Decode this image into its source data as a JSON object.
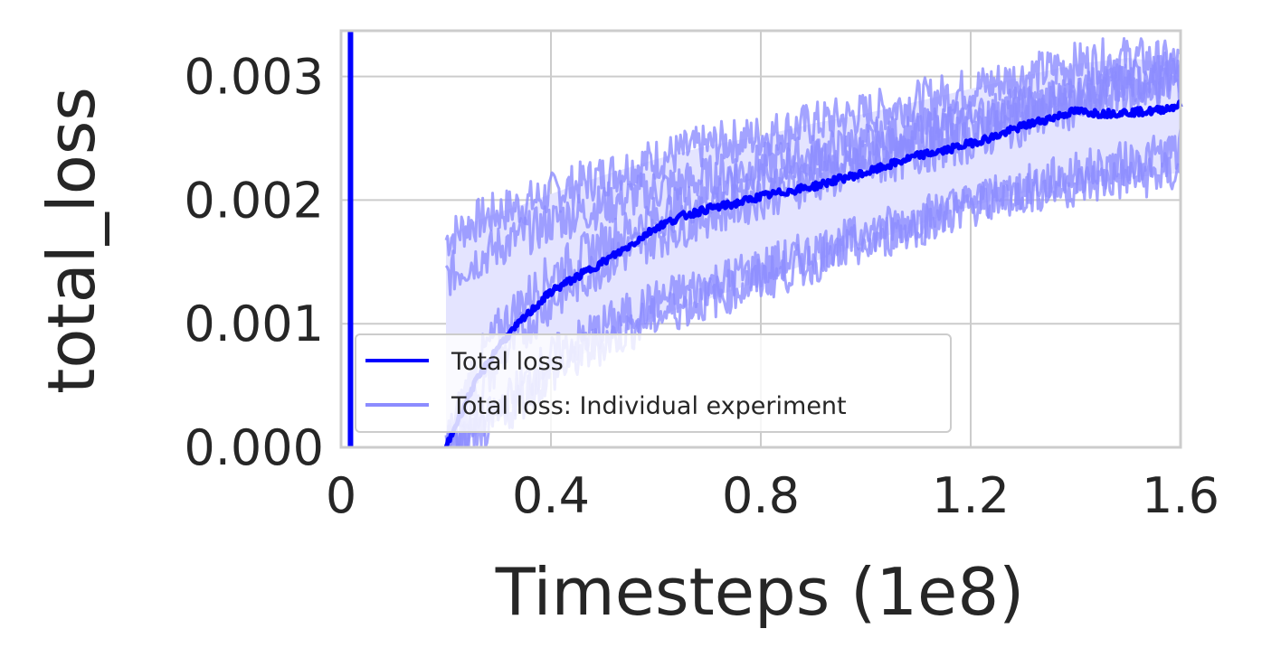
{
  "chart_data": {
    "type": "line",
    "xlabel": "Timesteps (1e8)",
    "ylabel": "total_loss",
    "xlim": [
      0,
      1.6
    ],
    "ylim": [
      0,
      0.00337
    ],
    "xticks": [
      0,
      0.4,
      0.8,
      1.2,
      1.6
    ],
    "xtick_labels": [
      "0",
      "0.4",
      "0.8",
      "1.2",
      "1.6"
    ],
    "yticks": [
      0,
      0.001,
      0.002,
      0.003
    ],
    "ytick_labels": [
      "0.000",
      "0.001",
      "0.002",
      "0.003"
    ],
    "grid": true,
    "legend_position": "lower-left",
    "legend": [
      "Total loss",
      "Total loss: Individual experiment"
    ],
    "colors": {
      "mean": "#0000ff",
      "individual": "#8c8cff",
      "band": "#e4e4ff",
      "grid": "#cccccc",
      "text": "#262626"
    },
    "vertical_line": {
      "x": 0.018,
      "color": "#0000ff"
    },
    "series": [
      {
        "name": "Total loss",
        "x": [
          0.2,
          0.25,
          0.3,
          0.35,
          0.4,
          0.45,
          0.5,
          0.55,
          0.6,
          0.65,
          0.7,
          0.75,
          0.8,
          0.85,
          0.9,
          0.95,
          1.0,
          1.05,
          1.1,
          1.15,
          1.2,
          1.25,
          1.3,
          1.35,
          1.4,
          1.45,
          1.5,
          1.55,
          1.6
        ],
        "values": [
          0.0,
          0.00048,
          0.00082,
          0.00105,
          0.00126,
          0.00138,
          0.0015,
          0.00163,
          0.00178,
          0.00187,
          0.00193,
          0.00197,
          0.00203,
          0.00207,
          0.00211,
          0.00217,
          0.00222,
          0.00229,
          0.00236,
          0.0024,
          0.00246,
          0.00252,
          0.0026,
          0.00266,
          0.00272,
          0.0027,
          0.00271,
          0.00272,
          0.00277
        ]
      },
      {
        "name": "Total loss: Individual experiment",
        "x": [
          0.2,
          0.25,
          0.3,
          0.35,
          0.4,
          0.5,
          0.6,
          0.7,
          0.8,
          0.9,
          1.0,
          1.1,
          1.2,
          1.3,
          1.4,
          1.5,
          1.6
        ],
        "values": [
          0.00168,
          0.00182,
          0.0019,
          0.00197,
          0.00205,
          0.0022,
          0.00233,
          0.00244,
          0.00252,
          0.00262,
          0.0027,
          0.0028,
          0.0029,
          0.003,
          0.0031,
          0.00315,
          0.0031
        ]
      },
      {
        "name": "Total loss: Individual experiment",
        "x": [
          0.2,
          0.25,
          0.3,
          0.35,
          0.4,
          0.5,
          0.6,
          0.7,
          0.8,
          0.9,
          1.0,
          1.1,
          1.2,
          1.3,
          1.4,
          1.5,
          1.6
        ],
        "values": [
          0.00138,
          0.0015,
          0.00162,
          0.00172,
          0.00182,
          0.00196,
          0.00208,
          0.00218,
          0.00228,
          0.00236,
          0.00245,
          0.00255,
          0.00265,
          0.00275,
          0.00285,
          0.00292,
          0.00298
        ]
      },
      {
        "name": "Total loss: Individual experiment",
        "x": [
          0.2,
          0.25,
          0.3,
          0.35,
          0.4,
          0.5,
          0.6,
          0.7,
          0.8,
          0.9,
          1.0,
          1.1,
          1.2,
          1.3,
          1.4,
          1.5,
          1.6
        ],
        "values": [
          0.0,
          0.0006,
          0.00095,
          0.0012,
          0.0014,
          0.00165,
          0.00186,
          0.00203,
          0.00218,
          0.0023,
          0.0024,
          0.00252,
          0.00262,
          0.00274,
          0.00285,
          0.00296,
          0.00304
        ]
      },
      {
        "name": "Total loss: Individual experiment",
        "x": [
          0.2,
          0.25,
          0.3,
          0.35,
          0.4,
          0.5,
          0.6,
          0.7,
          0.8,
          0.9,
          1.0,
          1.1,
          1.2,
          1.3,
          1.4,
          1.5,
          1.6
        ],
        "values": [
          0.0,
          0.00035,
          0.0007,
          0.00096,
          0.00118,
          0.00148,
          0.0017,
          0.00188,
          0.00202,
          0.00215,
          0.00226,
          0.00238,
          0.00248,
          0.00262,
          0.00276,
          0.00288,
          0.00296
        ]
      },
      {
        "name": "Total loss: Individual experiment",
        "x": [
          0.2,
          0.25,
          0.3,
          0.35,
          0.4,
          0.5,
          0.6,
          0.7,
          0.8,
          0.9,
          1.0,
          1.1,
          1.2,
          1.3,
          1.4,
          1.5,
          1.6
        ],
        "values": [
          0.0,
          0.0001,
          0.0003,
          0.00052,
          0.00072,
          0.00098,
          0.00118,
          0.00132,
          0.00145,
          0.00158,
          0.00172,
          0.00186,
          0.00198,
          0.00206,
          0.00212,
          0.00218,
          0.00222
        ]
      },
      {
        "name": "Total loss: Individual experiment",
        "x": [
          0.2,
          0.25,
          0.3,
          0.35,
          0.4,
          0.5,
          0.6,
          0.7,
          0.8,
          0.9,
          1.0,
          1.1,
          1.2,
          1.3,
          1.4,
          1.5,
          1.6
        ],
        "values": [
          0.0,
          8e-05,
          0.00022,
          0.00042,
          0.0006,
          0.00085,
          0.00106,
          0.0012,
          0.00135,
          0.0015,
          0.00165,
          0.0018,
          0.00195,
          0.0021,
          0.00222,
          0.0023,
          0.0024
        ]
      }
    ]
  }
}
